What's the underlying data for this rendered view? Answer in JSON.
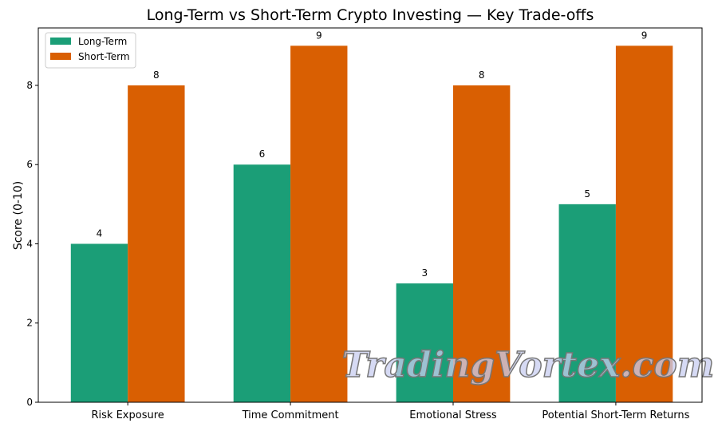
{
  "chart_data": {
    "type": "bar",
    "title": "Long-Term vs Short-Term Crypto Investing — Key Trade-offs",
    "xlabel": "",
    "ylabel": "Score (0-10)",
    "ylim": [
      0,
      9.45
    ],
    "yticks": [
      0,
      2,
      4,
      6,
      8
    ],
    "grid": false,
    "legend_position": "top-left",
    "categories": [
      "Risk Exposure",
      "Time Commitment",
      "Emotional Stress",
      "Potential Short-Term Returns"
    ],
    "series": [
      {
        "name": "Long-Term",
        "color": "#1b9e77",
        "values": [
          4,
          6,
          3,
          5
        ]
      },
      {
        "name": "Short-Term",
        "color": "#d95f02",
        "values": [
          8,
          9,
          8,
          9
        ]
      }
    ],
    "data_labels": true
  },
  "watermark": "TradingVortex.com"
}
